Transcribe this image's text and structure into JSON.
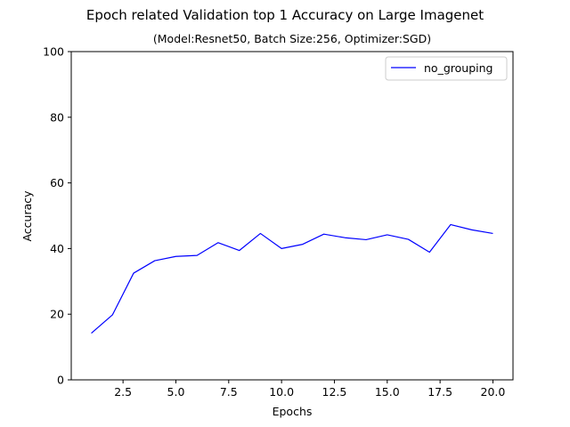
{
  "chart_data": {
    "type": "line",
    "title": "Epoch related Validation top 1 Accuracy on Large Imagenet",
    "subtitle": "(Model:Resnet50, Batch Size:256, Optimizer:SGD)",
    "xlabel": "Epochs",
    "ylabel": "Accuracy",
    "xlim": [
      0.05,
      20.95
    ],
    "ylim": [
      0,
      100
    ],
    "xticks": [
      2.5,
      5.0,
      7.5,
      10.0,
      12.5,
      15.0,
      17.5,
      20.0
    ],
    "xtick_labels": [
      "2.5",
      "5.0",
      "7.5",
      "10.0",
      "12.5",
      "15.0",
      "17.5",
      "20.0"
    ],
    "yticks": [
      0,
      20,
      40,
      60,
      80,
      100
    ],
    "ytick_labels": [
      "0",
      "20",
      "40",
      "60",
      "80",
      "100"
    ],
    "grid": false,
    "legend_position": "top-right",
    "x": [
      1,
      2,
      3,
      4,
      5,
      6,
      7,
      8,
      9,
      10,
      11,
      12,
      13,
      14,
      15,
      16,
      17,
      18,
      19,
      20
    ],
    "series": [
      {
        "name": "no_grouping",
        "color": "#0000ff",
        "values": [
          14.2,
          19.8,
          32.5,
          36.3,
          37.6,
          37.9,
          41.8,
          39.4,
          44.6,
          40.0,
          41.3,
          44.4,
          43.3,
          42.7,
          44.2,
          42.8,
          38.9,
          47.3,
          45.7,
          44.6
        ]
      }
    ]
  }
}
